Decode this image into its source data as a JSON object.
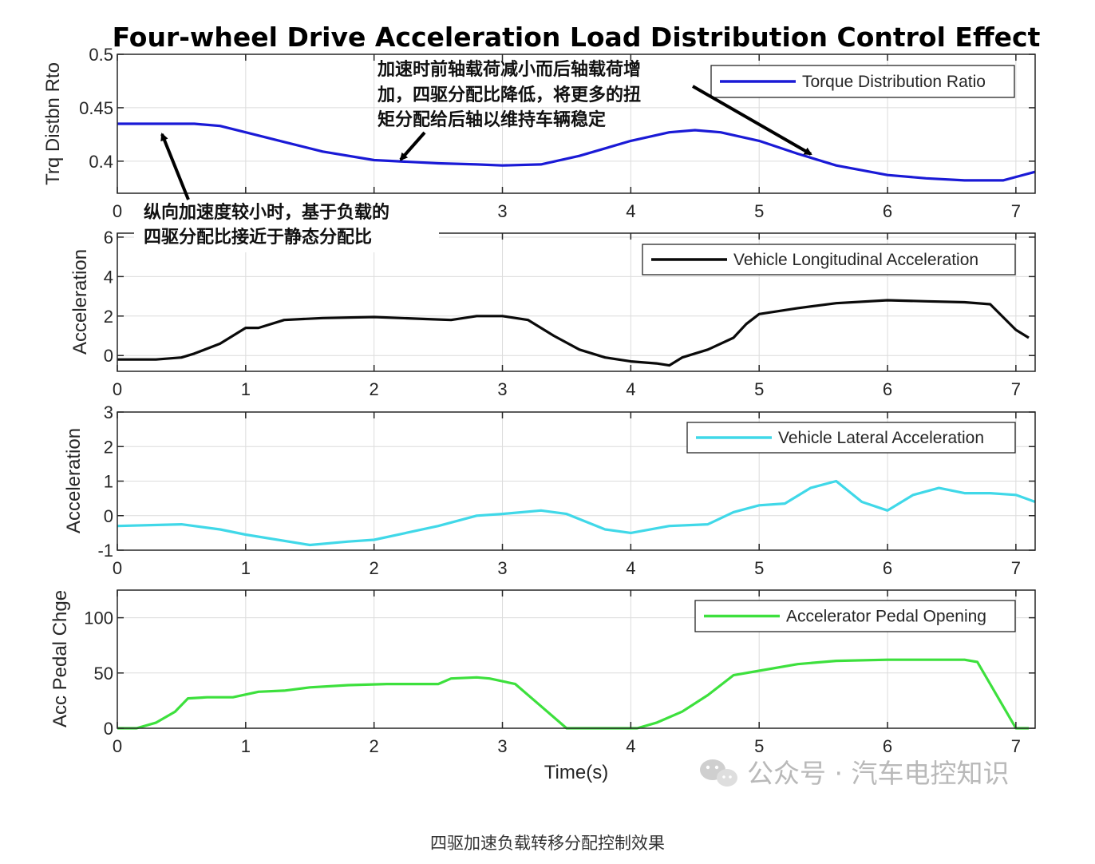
{
  "figure": {
    "title": "Four-wheel Drive Acceleration Load Distribution Control Effect",
    "xlabel": "Time(s)",
    "caption": "四驱加速负载转移分配控制效果",
    "watermark": "公众号 · 汽车电控知识",
    "watermark_icon": "wechat-icon"
  },
  "annotations": [
    {
      "lines": [
        "加速时前轴载荷减小而后轴载荷增",
        "加，四驱分配比降低，将更多的扭",
        "矩分配给后轴以维持车辆稳定"
      ]
    },
    {
      "lines": [
        "纵向加速度较小时，基于负载的",
        "四驱分配比接近于静态分配比"
      ]
    }
  ],
  "chart_data": [
    {
      "type": "line",
      "ylabel": "Trq Distbn Rto",
      "xlim": [
        0,
        7.15
      ],
      "ylim": [
        0.37,
        0.5
      ],
      "xticks": [
        "0",
        "1",
        "2",
        "3",
        "4",
        "5",
        "6",
        "7"
      ],
      "yticks": [
        "0.4",
        "0.45",
        "0.5"
      ],
      "ytick_values": [
        0.4,
        0.45,
        0.5
      ],
      "grid": true,
      "legend_position": "top-right",
      "series": [
        {
          "name": "Torque Distribution Ratio",
          "color": "#1a1ad6",
          "x": [
            0,
            0.3,
            0.6,
            0.8,
            1.0,
            1.3,
            1.6,
            2.0,
            2.5,
            2.8,
            3.0,
            3.3,
            3.6,
            4.0,
            4.3,
            4.5,
            4.7,
            5.0,
            5.3,
            5.6,
            6.0,
            6.3,
            6.6,
            6.9,
            7.15
          ],
          "y": [
            0.435,
            0.435,
            0.435,
            0.433,
            0.427,
            0.418,
            0.409,
            0.401,
            0.398,
            0.397,
            0.396,
            0.397,
            0.405,
            0.419,
            0.427,
            0.429,
            0.427,
            0.419,
            0.407,
            0.396,
            0.387,
            0.384,
            0.382,
            0.382,
            0.39
          ]
        }
      ]
    },
    {
      "type": "line",
      "ylabel": "Acceleration",
      "xlim": [
        0,
        7.15
      ],
      "ylim": [
        -0.8,
        6.2
      ],
      "xticks": [
        "0",
        "1",
        "2",
        "3",
        "4",
        "5",
        "6",
        "7"
      ],
      "yticks": [
        "0",
        "2",
        "4",
        "6"
      ],
      "ytick_values": [
        0,
        2,
        4,
        6
      ],
      "grid": true,
      "legend_position": "top-right",
      "series": [
        {
          "name": "Vehicle Longitudinal Acceleration",
          "color": "#0a0a0a",
          "x": [
            0,
            0.3,
            0.5,
            0.6,
            0.8,
            1.0,
            1.1,
            1.3,
            1.6,
            2.0,
            2.4,
            2.6,
            2.8,
            3.0,
            3.2,
            3.4,
            3.6,
            3.8,
            4.0,
            4.2,
            4.3,
            4.4,
            4.6,
            4.8,
            4.9,
            5.0,
            5.3,
            5.6,
            6.0,
            6.3,
            6.6,
            6.8,
            7.0,
            7.1
          ],
          "y": [
            -0.2,
            -0.2,
            -0.1,
            0.1,
            0.6,
            1.4,
            1.4,
            1.8,
            1.9,
            1.95,
            1.85,
            1.8,
            2.0,
            2.0,
            1.8,
            1.0,
            0.3,
            -0.1,
            -0.3,
            -0.4,
            -0.5,
            -0.1,
            0.3,
            0.9,
            1.6,
            2.1,
            2.4,
            2.65,
            2.8,
            2.75,
            2.7,
            2.6,
            1.3,
            0.9
          ]
        }
      ]
    },
    {
      "type": "line",
      "ylabel": "Acceleration",
      "xlim": [
        0,
        7.15
      ],
      "ylim": [
        -1,
        3
      ],
      "xticks": [
        "0",
        "1",
        "2",
        "3",
        "4",
        "5",
        "6",
        "7"
      ],
      "yticks": [
        "-1",
        "0",
        "1",
        "2",
        "3"
      ],
      "ytick_values": [
        -1,
        0,
        1,
        2,
        3
      ],
      "grid": true,
      "legend_position": "top-right",
      "series": [
        {
          "name": "Vehicle Lateral Acceleration",
          "color": "#40d8e8",
          "x": [
            0,
            0.5,
            0.8,
            1.0,
            1.5,
            1.8,
            2.0,
            2.5,
            2.8,
            3.0,
            3.3,
            3.5,
            3.8,
            4.0,
            4.3,
            4.6,
            4.8,
            5.0,
            5.2,
            5.4,
            5.6,
            5.8,
            6.0,
            6.2,
            6.4,
            6.6,
            6.8,
            7.0,
            7.15
          ],
          "y": [
            -0.3,
            -0.25,
            -0.4,
            -0.55,
            -0.85,
            -0.75,
            -0.7,
            -0.3,
            0.0,
            0.05,
            0.15,
            0.05,
            -0.4,
            -0.5,
            -0.3,
            -0.25,
            0.1,
            0.3,
            0.35,
            0.8,
            1.0,
            0.4,
            0.15,
            0.6,
            0.8,
            0.65,
            0.65,
            0.6,
            0.4
          ]
        }
      ]
    },
    {
      "type": "line",
      "ylabel": "Acc Pedal Chge",
      "xlim": [
        0,
        7.15
      ],
      "ylim": [
        0,
        125
      ],
      "xticks": [
        "0",
        "1",
        "2",
        "3",
        "4",
        "5",
        "6",
        "7"
      ],
      "yticks": [
        "0",
        "50",
        "100"
      ],
      "ytick_values": [
        0,
        50,
        100
      ],
      "grid": true,
      "legend_position": "top-right",
      "series": [
        {
          "name": "Accelerator Pedal Opening",
          "color": "#3de03d",
          "x": [
            0,
            0.15,
            0.3,
            0.45,
            0.55,
            0.7,
            0.9,
            1.1,
            1.3,
            1.5,
            1.8,
            2.1,
            2.5,
            2.6,
            2.8,
            2.9,
            3.1,
            3.3,
            3.5,
            3.7,
            3.9,
            4.05,
            4.2,
            4.4,
            4.6,
            4.8,
            5.0,
            5.3,
            5.6,
            6.0,
            6.3,
            6.6,
            6.7,
            6.9,
            7.0,
            7.1
          ],
          "y": [
            0,
            0,
            5,
            15,
            27,
            28,
            28,
            33,
            34,
            37,
            39,
            40,
            40,
            45,
            46,
            45,
            40,
            20,
            0,
            0,
            0,
            0,
            5,
            15,
            30,
            48,
            52,
            58,
            61,
            62,
            62,
            62,
            60,
            20,
            0,
            0
          ]
        }
      ]
    }
  ]
}
